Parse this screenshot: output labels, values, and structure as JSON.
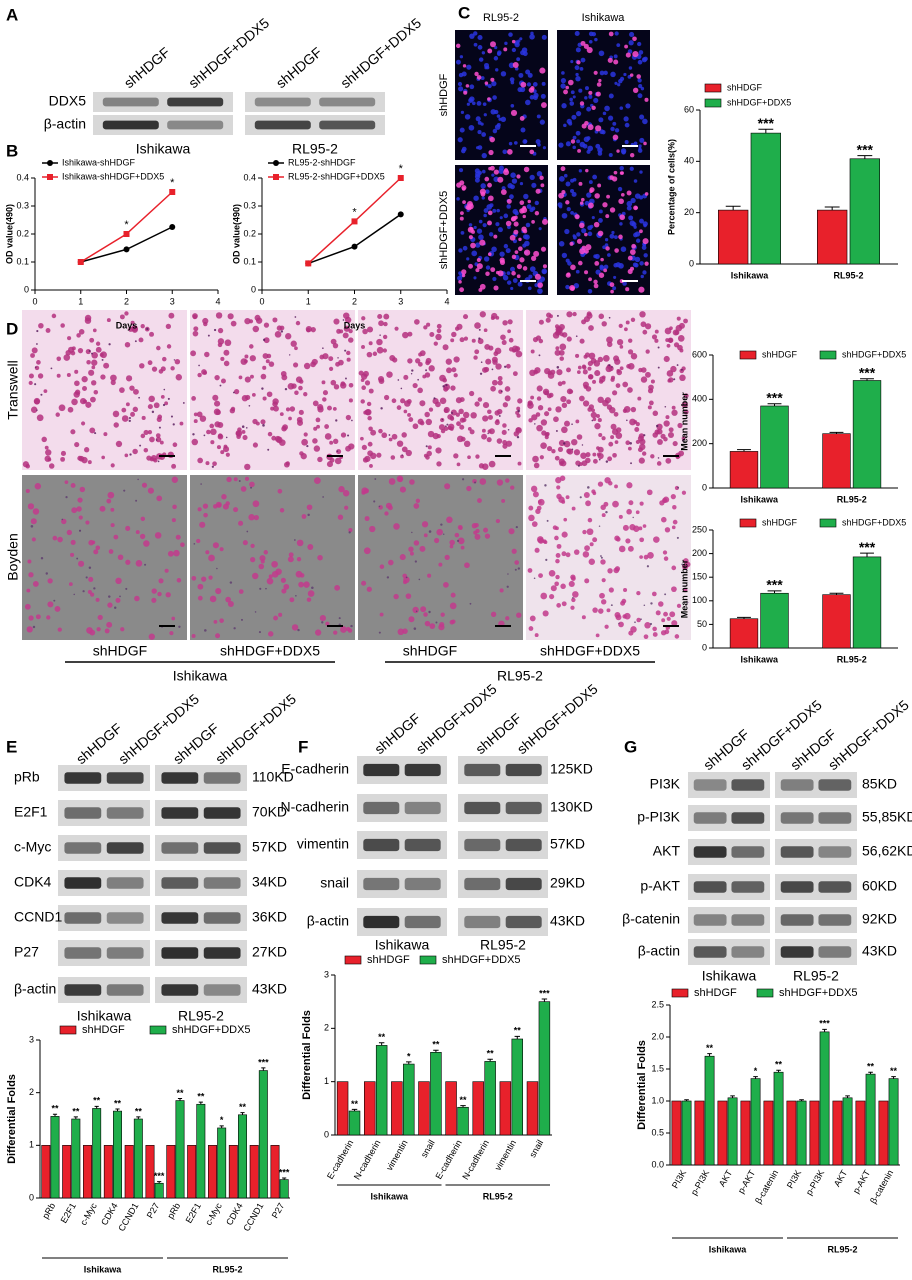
{
  "panel_labels": [
    "A",
    "B",
    "C",
    "D",
    "E",
    "F",
    "G"
  ],
  "blot_A": {
    "lanes": [
      "shHDGF",
      "shHDGF+DDX5",
      "shHDGF",
      "shHDGF+DDX5"
    ],
    "rows": [
      "DDX5",
      "β-actin"
    ],
    "groups": [
      "Ishikawa",
      "RL95-2"
    ]
  },
  "images_C": {
    "columns": [
      "RL95-2",
      "Ishikawa"
    ],
    "rows": [
      "shHDGF",
      "shHDGF+DDX5"
    ]
  },
  "images_D": {
    "rows": [
      "Transwell",
      "Boyden"
    ],
    "lanes": [
      "shHDGF",
      "shHDGF+DDX5",
      "shHDGF",
      "shHDGF+DDX5"
    ],
    "groups": [
      "Ishikawa",
      "RL95-2"
    ]
  },
  "blot_E": {
    "lanes": [
      "shHDGF",
      "shHDGF+DDX5",
      "shHDGF",
      "shHDGF+DDX5"
    ],
    "rows": [
      "pRb",
      "E2F1",
      "c-Myc",
      "CDK4",
      "CCND1",
      "P27",
      "β-actin"
    ],
    "sizes": [
      "110KD",
      "70KD",
      "57KD",
      "34KD",
      "36KD",
      "27KD",
      "43KD"
    ],
    "groups": [
      "Ishikawa",
      "RL95-2"
    ]
  },
  "blot_F": {
    "lanes": [
      "shHDGF",
      "shHDGF+DDX5",
      "shHDGF",
      "shHDGF+DDX5"
    ],
    "rows": [
      "E-cadherin",
      "N-cadherin",
      "vimentin",
      "snail",
      "β-actin"
    ],
    "sizes": [
      "125KD",
      "130KD",
      "57KD",
      "29KD",
      "43KD"
    ],
    "groups": [
      "Ishikawa",
      "RL95-2"
    ]
  },
  "blot_G": {
    "lanes": [
      "shHDGF",
      "shHDGF+DDX5",
      "shHDGF",
      "shHDGF+DDX5"
    ],
    "rows": [
      "PI3K",
      "p-PI3K",
      "AKT",
      "p-AKT",
      "β-catenin",
      "β-actin"
    ],
    "sizes": [
      "85KD",
      "55,85KD",
      "56,62KD",
      "60KD",
      "92KD",
      "43KD"
    ],
    "groups": [
      "Ishikawa",
      "RL95-2"
    ]
  },
  "chart_data": [
    {
      "type": "line",
      "xlabel": "Days",
      "ylabel": "OD value(490)",
      "x": [
        1,
        2,
        3
      ],
      "xlim": [
        0,
        4
      ],
      "xticks": [
        0,
        1,
        2,
        3,
        4
      ],
      "ylim": [
        0,
        0.4
      ],
      "yticks": [
        0,
        0.1,
        0.2,
        0.3,
        0.4
      ],
      "series": [
        {
          "name": "Ishikawa-shHDGF",
          "color": "#000000",
          "marker": "circle",
          "values": [
            0.1,
            0.145,
            0.225
          ]
        },
        {
          "name": "Ishikawa-shHDGF+DDX5",
          "color": "#e8212b",
          "marker": "square",
          "values": [
            0.1,
            0.2,
            0.35
          ]
        }
      ],
      "annotations": [
        null,
        "*",
        "*"
      ]
    },
    {
      "type": "line",
      "xlabel": "Days",
      "ylabel": "OD value(490)",
      "x": [
        1,
        2,
        3
      ],
      "xlim": [
        0,
        4
      ],
      "xticks": [
        0,
        1,
        2,
        3,
        4
      ],
      "ylim": [
        0,
        0.4
      ],
      "yticks": [
        0,
        0.1,
        0.2,
        0.3,
        0.4
      ],
      "series": [
        {
          "name": "RL95-2-shHDGF",
          "color": "#000000",
          "marker": "circle",
          "values": [
            0.095,
            0.155,
            0.27
          ]
        },
        {
          "name": "RL95-2-shHDGF+DDX5",
          "color": "#e8212b",
          "marker": "square",
          "values": [
            0.095,
            0.245,
            0.4
          ]
        }
      ],
      "annotations": [
        null,
        "*",
        "*"
      ]
    },
    {
      "type": "bar",
      "ylabel": "Percentage of cells(%)",
      "categories": [
        "Ishikawa",
        "RL95-2"
      ],
      "ylim": [
        0,
        60
      ],
      "yticks": [
        0,
        20,
        40,
        60
      ],
      "series": [
        {
          "name": "shHDGF",
          "color": "#e8212b",
          "values": [
            21,
            21
          ],
          "errors": [
            1.5,
            1.2
          ]
        },
        {
          "name": "shHDGF+DDX5",
          "color": "#1fae4b",
          "values": [
            51,
            41
          ],
          "errors": [
            1.5,
            1.2
          ]
        }
      ],
      "annotations": [
        "***",
        "***"
      ]
    },
    {
      "type": "bar",
      "ylabel": "Mean number",
      "categories": [
        "Ishikawa",
        "RL95-2"
      ],
      "ylim": [
        0,
        600
      ],
      "yticks": [
        0,
        200,
        400,
        600
      ],
      "series": [
        {
          "name": "shHDGF",
          "color": "#e8212b",
          "values": [
            165,
            245
          ],
          "errors": [
            8,
            6
          ]
        },
        {
          "name": "shHDGF+DDX5",
          "color": "#1fae4b",
          "values": [
            370,
            485
          ],
          "errors": [
            10,
            8
          ]
        }
      ],
      "annotations": [
        "***",
        "***"
      ]
    },
    {
      "type": "bar",
      "ylabel": "Mean number",
      "categories": [
        "Ishikawa",
        "RL95-2"
      ],
      "ylim": [
        0,
        250
      ],
      "yticks": [
        0,
        50,
        100,
        150,
        200,
        250
      ],
      "series": [
        {
          "name": "shHDGF",
          "color": "#e8212b",
          "values": [
            62,
            113
          ],
          "errors": [
            3,
            3
          ]
        },
        {
          "name": "shHDGF+DDX5",
          "color": "#1fae4b",
          "values": [
            116,
            193
          ],
          "errors": [
            5,
            8
          ]
        }
      ],
      "annotations": [
        "***",
        "***"
      ]
    },
    {
      "type": "bar",
      "ylabel": "Differential Folds",
      "categories": [
        "pRb",
        "E2F1",
        "c-Myc",
        "CDK4",
        "CCND1",
        "P27",
        "pRb",
        "E2F1",
        "c-Myc",
        "CDK4",
        "CCND1",
        "P27"
      ],
      "group_labels": [
        "Ishikawa",
        "RL95-2"
      ],
      "ylim": [
        0,
        3
      ],
      "yticks": [
        0,
        1,
        2,
        3
      ],
      "series": [
        {
          "name": "shHDGF",
          "color": "#e8212b",
          "values": [
            1,
            1,
            1,
            1,
            1,
            1,
            1,
            1,
            1,
            1,
            1,
            1
          ]
        },
        {
          "name": "shHDGF+DDX5",
          "color": "#1fae4b",
          "values": [
            1.55,
            1.5,
            1.7,
            1.65,
            1.5,
            0.28,
            1.85,
            1.78,
            1.33,
            1.58,
            2.42,
            0.35
          ],
          "errors": [
            0.04,
            0.04,
            0.04,
            0.04,
            0.04,
            0.03,
            0.04,
            0.04,
            0.04,
            0.04,
            0.05,
            0.03
          ]
        }
      ],
      "annotations": [
        "**",
        "**",
        "**",
        "**",
        "**",
        "***",
        "**",
        "**",
        "*",
        "**",
        "***",
        "***"
      ]
    },
    {
      "type": "bar",
      "ylabel": "Differential Folds",
      "categories": [
        "E-cadherin",
        "N-cadherin",
        "vimentin",
        "snail",
        "E-cadherin",
        "N-cadherin",
        "vimentin",
        "snail"
      ],
      "group_labels": [
        "Ishikawa",
        "RL95-2"
      ],
      "ylim": [
        0,
        3
      ],
      "yticks": [
        0,
        1,
        2,
        3
      ],
      "series": [
        {
          "name": "shHDGF",
          "color": "#e8212b",
          "values": [
            1,
            1,
            1,
            1,
            1,
            1,
            1,
            1
          ]
        },
        {
          "name": "shHDGF+DDX5",
          "color": "#1fae4b",
          "values": [
            0.45,
            1.68,
            1.33,
            1.55,
            0.52,
            1.38,
            1.8,
            2.5
          ],
          "errors": [
            0.03,
            0.05,
            0.04,
            0.04,
            0.03,
            0.04,
            0.05,
            0.05
          ]
        }
      ],
      "annotations": [
        "**",
        "**",
        "*",
        "**",
        "**",
        "**",
        "**",
        "***"
      ]
    },
    {
      "type": "bar",
      "ylabel": "Differential Folds",
      "categories": [
        "PI3K",
        "p-PI3K",
        "AKT",
        "p-AKT",
        "β-catenin",
        "PI3K",
        "p-PI3K",
        "AKT",
        "p-AKT",
        "β-catenin"
      ],
      "group_labels": [
        "Ishikawa",
        "RL95-2"
      ],
      "ylim": [
        0,
        2.5
      ],
      "yticks": [
        {
          "value": 0,
          "label": "0.0"
        },
        0.5,
        {
          "value": 1,
          "label": "1.0"
        },
        1.5,
        {
          "value": 2,
          "label": "2.0"
        },
        2.5
      ],
      "series": [
        {
          "name": "shHDGF",
          "color": "#e8212b",
          "values": [
            1,
            1,
            1,
            1,
            1,
            1,
            1,
            1,
            1,
            1
          ]
        },
        {
          "name": "shHDGF+DDX5",
          "color": "#1fae4b",
          "values": [
            1.0,
            1.7,
            1.05,
            1.35,
            1.45,
            1.0,
            2.08,
            1.05,
            1.42,
            1.35
          ],
          "errors": [
            0.02,
            0.04,
            0.03,
            0.03,
            0.03,
            0.02,
            0.04,
            0.03,
            0.03,
            0.03
          ]
        }
      ],
      "annotations": [
        null,
        "**",
        null,
        "*",
        "**",
        null,
        "***",
        null,
        "**",
        "**"
      ]
    }
  ]
}
